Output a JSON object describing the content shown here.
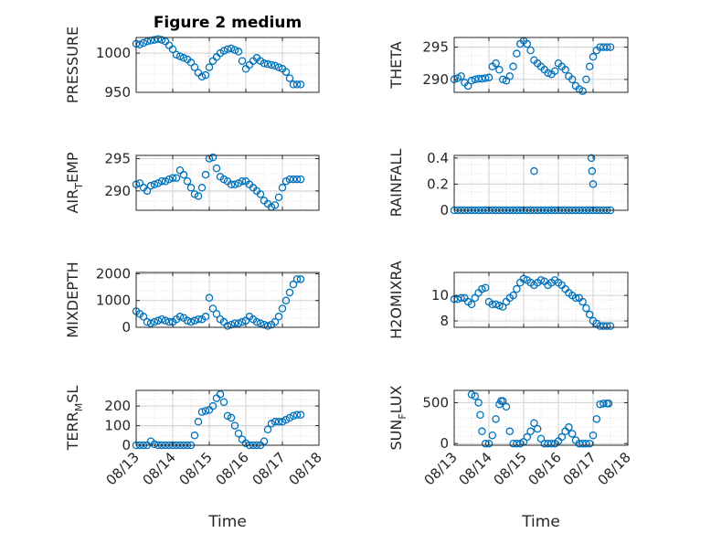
{
  "figure": {
    "title": "Figure 2 medium"
  },
  "colors": {
    "marker": "#0072BD",
    "axis": "#262626",
    "grid": "#dfdfdf"
  },
  "chart_data": [
    {
      "type": "scatter",
      "ylabel": "PRESSURE",
      "ylabel_sub": "",
      "ylim": [
        950,
        1020
      ],
      "yticks": [
        950,
        1000
      ],
      "xlim": [
        0,
        5
      ],
      "xticks": [],
      "xlabel": "",
      "x": [
        0,
        0.1,
        0.2,
        0.3,
        0.4,
        0.5,
        0.6,
        0.7,
        0.8,
        0.9,
        1.0,
        1.1,
        1.2,
        1.3,
        1.4,
        1.5,
        1.6,
        1.7,
        1.8,
        1.9,
        2.0,
        2.1,
        2.2,
        2.3,
        2.4,
        2.5,
        2.6,
        2.7,
        2.8,
        2.9,
        3.0,
        3.1,
        3.2,
        3.3,
        3.4,
        3.5,
        3.6,
        3.7,
        3.8,
        3.9,
        4.0,
        4.1,
        4.2,
        4.3,
        4.4,
        4.5
      ],
      "y": [
        1012,
        1011,
        1013,
        1015,
        1016,
        1017,
        1018,
        1017,
        1015,
        1010,
        1005,
        998,
        996,
        994,
        992,
        988,
        982,
        975,
        970,
        972,
        982,
        990,
        995,
        1000,
        1003,
        1005,
        1006,
        1004,
        1002,
        990,
        980,
        985,
        990,
        994,
        990,
        987,
        986,
        985,
        984,
        982,
        980,
        976,
        968,
        960,
        960,
        960
      ]
    },
    {
      "type": "scatter",
      "ylabel": "THETA",
      "ylabel_sub": "",
      "ylim": [
        288,
        296.5
      ],
      "yticks": [
        290,
        295
      ],
      "xlim": [
        0,
        5
      ],
      "xticks": [],
      "xlabel": "",
      "x": [
        0,
        0.1,
        0.2,
        0.3,
        0.4,
        0.5,
        0.6,
        0.7,
        0.8,
        0.9,
        1.0,
        1.1,
        1.2,
        1.3,
        1.4,
        1.5,
        1.6,
        1.7,
        1.8,
        1.9,
        2.0,
        2.1,
        2.2,
        2.3,
        2.4,
        2.5,
        2.6,
        2.7,
        2.8,
        2.9,
        3.0,
        3.1,
        3.2,
        3.3,
        3.4,
        3.5,
        3.6,
        3.7,
        3.8,
        3.9,
        4.0,
        4.1,
        4.2,
        4.3,
        4.4,
        4.5
      ],
      "y": [
        290,
        290.2,
        290.5,
        289.5,
        289,
        289.8,
        290,
        290.1,
        290.1,
        290.2,
        290.3,
        292,
        292.5,
        291.5,
        290,
        289.8,
        290.5,
        292,
        294,
        295.5,
        296,
        295.5,
        294.5,
        293,
        292.5,
        292,
        291.5,
        291,
        290.8,
        291.3,
        292.5,
        292,
        291.5,
        290.5,
        290,
        289,
        288.5,
        288.2,
        290,
        292,
        293.5,
        294.5,
        295,
        295,
        295,
        295
      ]
    },
    {
      "type": "scatter",
      "ylabel": "AIR",
      "ylabel_sub": "T",
      "ylabel_after": "EMP",
      "ylim": [
        287,
        295.5
      ],
      "yticks": [
        290,
        295
      ],
      "xlim": [
        0,
        5
      ],
      "xticks": [],
      "xlabel": "",
      "x": [
        0,
        0.1,
        0.2,
        0.3,
        0.4,
        0.5,
        0.6,
        0.7,
        0.8,
        0.9,
        1.0,
        1.1,
        1.2,
        1.3,
        1.4,
        1.5,
        1.6,
        1.7,
        1.8,
        1.9,
        2.0,
        2.1,
        2.2,
        2.3,
        2.4,
        2.5,
        2.6,
        2.7,
        2.8,
        2.9,
        3.0,
        3.1,
        3.2,
        3.3,
        3.4,
        3.5,
        3.6,
        3.7,
        3.8,
        3.9,
        4.0,
        4.1,
        4.2,
        4.3,
        4.4,
        4.5
      ],
      "y": [
        291,
        291.2,
        290.5,
        290,
        290.8,
        291,
        291.2,
        291.5,
        291.5,
        291.8,
        292,
        292,
        293.2,
        292.5,
        291.5,
        290.5,
        289.5,
        289.2,
        290.5,
        292.5,
        295,
        295.2,
        293.5,
        292.2,
        291.8,
        291.5,
        291,
        291,
        291.2,
        291.5,
        291.5,
        291,
        290.5,
        290,
        289.5,
        288.5,
        288,
        287.5,
        287.8,
        289,
        290.5,
        291.5,
        291.8,
        291.8,
        291.8,
        291.8
      ]
    },
    {
      "type": "scatter",
      "ylabel": "RAINFALL",
      "ylabel_sub": "",
      "ylim": [
        0,
        0.42
      ],
      "yticks": [
        0,
        0.2,
        0.4
      ],
      "ytick_labels": [
        "0",
        "0.2",
        "0.4"
      ],
      "xlim": [
        0,
        5
      ],
      "xticks": [],
      "xlabel": "",
      "x": [
        0,
        0.1,
        0.2,
        0.3,
        0.4,
        0.5,
        0.6,
        0.7,
        0.8,
        0.9,
        1.0,
        1.1,
        1.2,
        1.3,
        1.4,
        1.5,
        1.6,
        1.7,
        1.8,
        1.9,
        2.0,
        2.1,
        2.2,
        2.3,
        2.4,
        2.5,
        2.6,
        2.7,
        2.8,
        2.9,
        3.0,
        3.1,
        3.2,
        3.3,
        3.4,
        3.5,
        3.6,
        3.7,
        3.8,
        3.9,
        4.0,
        4.1,
        4.2,
        4.3,
        4.4,
        4.5,
        2.3,
        3.95,
        3.97,
        4.0
      ],
      "y": [
        0,
        0,
        0,
        0,
        0,
        0,
        0,
        0,
        0,
        0,
        0,
        0,
        0,
        0,
        0,
        0,
        0,
        0,
        0,
        0,
        0,
        0,
        0,
        0,
        0,
        0,
        0,
        0,
        0,
        0,
        0,
        0,
        0,
        0,
        0,
        0,
        0,
        0,
        0,
        0,
        0,
        0,
        0,
        0,
        0,
        0,
        0.3,
        0.4,
        0.3,
        0.2
      ]
    },
    {
      "type": "scatter",
      "ylabel": "MIXDEPTH",
      "ylabel_sub": "",
      "ylim": [
        0,
        2050
      ],
      "yticks": [
        0,
        1000,
        2000
      ],
      "xlim": [
        0,
        5
      ],
      "xticks": [],
      "xlabel": "",
      "x": [
        0,
        0.1,
        0.2,
        0.3,
        0.4,
        0.5,
        0.6,
        0.7,
        0.8,
        0.9,
        1.0,
        1.1,
        1.2,
        1.3,
        1.4,
        1.5,
        1.6,
        1.7,
        1.8,
        1.9,
        2.0,
        2.1,
        2.2,
        2.3,
        2.4,
        2.5,
        2.6,
        2.7,
        2.8,
        2.9,
        3.0,
        3.1,
        3.2,
        3.3,
        3.4,
        3.5,
        3.6,
        3.7,
        3.8,
        3.9,
        4.0,
        4.1,
        4.2,
        4.3,
        4.4,
        4.5
      ],
      "y": [
        600,
        500,
        400,
        200,
        150,
        200,
        250,
        300,
        250,
        200,
        200,
        300,
        400,
        350,
        250,
        200,
        250,
        300,
        300,
        400,
        1100,
        700,
        500,
        300,
        200,
        50,
        100,
        150,
        150,
        200,
        250,
        400,
        300,
        200,
        150,
        100,
        50,
        100,
        200,
        400,
        700,
        1000,
        1300,
        1600,
        1800,
        1800
      ]
    },
    {
      "type": "scatter",
      "ylabel": "H2OMIXRA",
      "ylabel_sub": "",
      "ylim": [
        7.5,
        11.8
      ],
      "yticks": [
        8,
        10
      ],
      "xlim": [
        0,
        5
      ],
      "xticks": [],
      "xlabel": "",
      "x": [
        0,
        0.1,
        0.2,
        0.3,
        0.4,
        0.5,
        0.6,
        0.7,
        0.8,
        0.9,
        1.0,
        1.1,
        1.2,
        1.3,
        1.4,
        1.5,
        1.6,
        1.7,
        1.8,
        1.9,
        2.0,
        2.1,
        2.2,
        2.3,
        2.4,
        2.5,
        2.6,
        2.7,
        2.8,
        2.9,
        3.0,
        3.1,
        3.2,
        3.3,
        3.4,
        3.5,
        3.6,
        3.7,
        3.8,
        3.9,
        4.0,
        4.1,
        4.2,
        4.3,
        4.4,
        4.5
      ],
      "y": [
        9.7,
        9.7,
        9.8,
        9.8,
        9.5,
        9.3,
        9.8,
        10.2,
        10.5,
        10.6,
        9.5,
        9.3,
        9.3,
        9.2,
        9.1,
        9.5,
        9.8,
        10,
        10.5,
        11,
        11.3,
        11.2,
        11,
        10.8,
        11,
        11.2,
        11.1,
        10.8,
        11,
        11.2,
        11,
        10.8,
        10.5,
        10.2,
        10,
        9.8,
        9.8,
        9.5,
        9,
        8.5,
        8,
        7.8,
        7.6,
        7.6,
        7.6,
        7.6
      ]
    },
    {
      "type": "scatter",
      "ylabel": "TERR",
      "ylabel_sub": "M",
      "ylabel_after": "SL",
      "ylim": [
        0,
        280
      ],
      "yticks": [
        0,
        100,
        200
      ],
      "xlim": [
        0,
        5
      ],
      "xticks": [
        0,
        1,
        2,
        3,
        4,
        5
      ],
      "xtick_labels": [
        "08/13",
        "08/14",
        "08/15",
        "08/16",
        "08/17",
        "08/18"
      ],
      "xlabel": "Time",
      "x": [
        0,
        0.1,
        0.2,
        0.3,
        0.4,
        0.5,
        0.6,
        0.7,
        0.8,
        0.9,
        1.0,
        1.1,
        1.2,
        1.3,
        1.4,
        1.5,
        1.6,
        1.7,
        1.8,
        1.9,
        2.0,
        2.1,
        2.2,
        2.3,
        2.4,
        2.5,
        2.6,
        2.7,
        2.8,
        2.9,
        3.0,
        3.1,
        3.2,
        3.3,
        3.4,
        3.5,
        3.6,
        3.7,
        3.8,
        3.9,
        4.0,
        4.1,
        4.2,
        4.3,
        4.4,
        4.5
      ],
      "y": [
        0,
        0,
        0,
        0,
        20,
        5,
        0,
        0,
        0,
        0,
        0,
        0,
        0,
        0,
        0,
        0,
        50,
        120,
        170,
        175,
        180,
        200,
        240,
        260,
        220,
        150,
        140,
        100,
        60,
        30,
        10,
        0,
        0,
        0,
        0,
        20,
        80,
        110,
        120,
        120,
        120,
        130,
        140,
        150,
        155,
        155
      ]
    },
    {
      "type": "scatter",
      "ylabel": "SUN",
      "ylabel_sub": "F",
      "ylabel_after": "LUX",
      "ylim": [
        -20,
        650
      ],
      "yticks": [
        0,
        500
      ],
      "xlim": [
        0,
        5
      ],
      "xticks": [
        0,
        1,
        2,
        3,
        4,
        5
      ],
      "xtick_labels": [
        "08/13",
        "08/14",
        "08/15",
        "08/16",
        "08/17",
        "08/18"
      ],
      "xlabel": "Time",
      "x": [
        0.5,
        0.6,
        0.7,
        0.75,
        0.8,
        0.9,
        1.0,
        1.1,
        1.2,
        1.3,
        1.35,
        1.4,
        1.5,
        1.6,
        1.7,
        1.8,
        1.9,
        2.0,
        2.1,
        2.2,
        2.3,
        2.4,
        2.5,
        2.6,
        2.7,
        2.8,
        2.9,
        3.0,
        3.1,
        3.2,
        3.3,
        3.4,
        3.5,
        3.6,
        3.7,
        3.8,
        3.9,
        4.0,
        4.1,
        4.2,
        4.3,
        4.4,
        4.45
      ],
      "y": [
        600,
        580,
        500,
        350,
        150,
        0,
        0,
        100,
        300,
        480,
        520,
        520,
        450,
        150,
        0,
        0,
        0,
        20,
        80,
        150,
        250,
        180,
        60,
        0,
        0,
        0,
        0,
        30,
        80,
        150,
        200,
        120,
        40,
        0,
        0,
        0,
        0,
        100,
        300,
        480,
        490,
        490,
        490
      ]
    }
  ]
}
